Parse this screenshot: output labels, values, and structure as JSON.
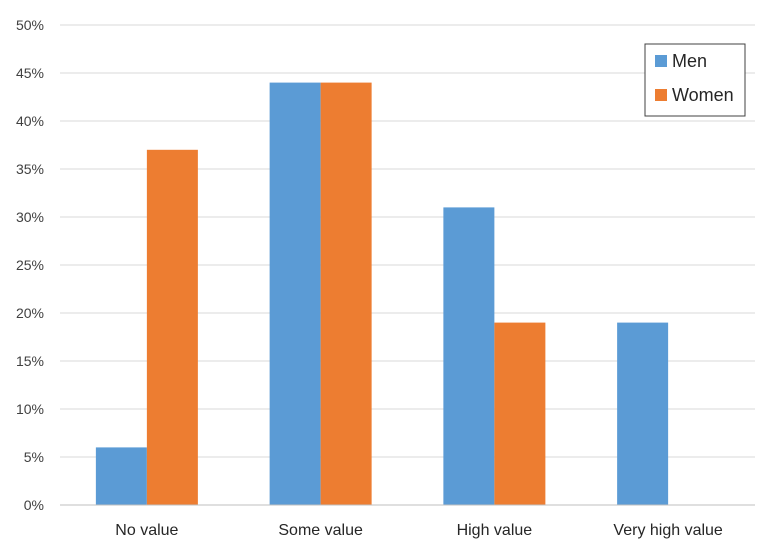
{
  "chart_data": {
    "type": "bar",
    "categories": [
      "No value",
      "Some value",
      "High value",
      "Very high value"
    ],
    "series": [
      {
        "name": "Men",
        "values": [
          6,
          44,
          31,
          19
        ],
        "color": "#5B9BD5"
      },
      {
        "name": "Women",
        "values": [
          37,
          44,
          19,
          0
        ],
        "color": "#ED7D31"
      }
    ],
    "ylim": [
      0,
      50
    ],
    "yticks": [
      "0%",
      "5%",
      "10%",
      "15%",
      "20%",
      "25%",
      "30%",
      "35%",
      "40%",
      "45%",
      "50%"
    ],
    "grid": true,
    "legend_position": "top-right",
    "title": "",
    "xlabel": "",
    "ylabel": ""
  }
}
